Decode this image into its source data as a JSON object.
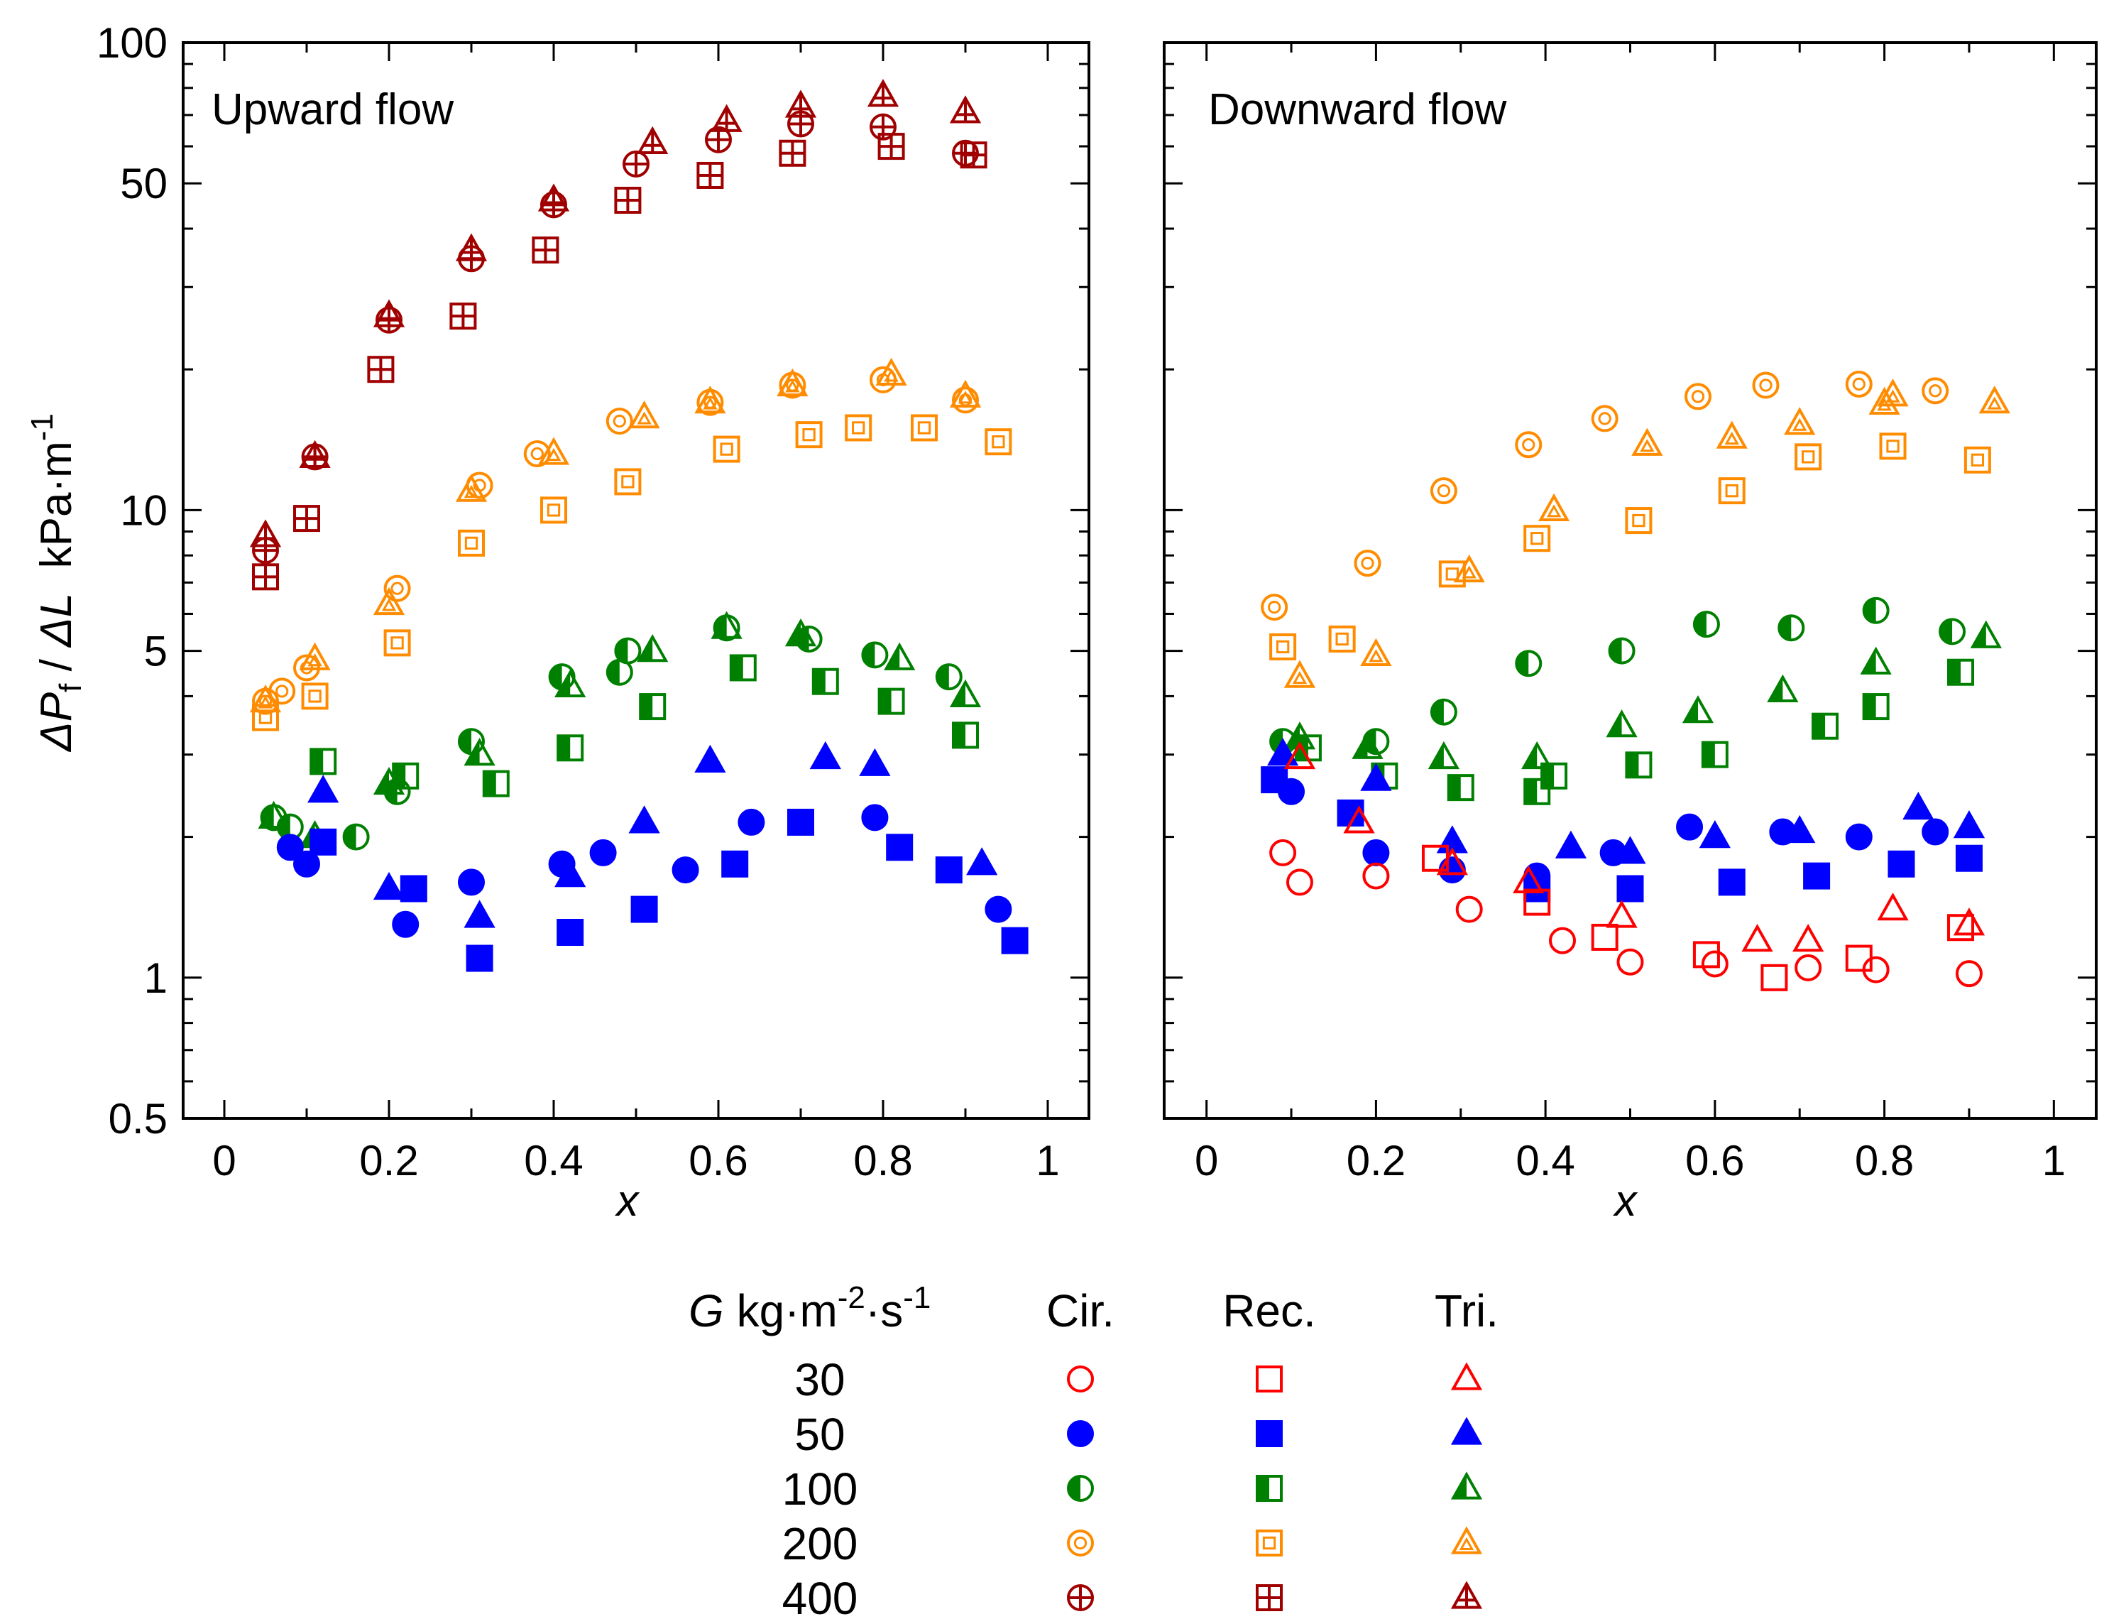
{
  "chart_data": {
    "type": "scatter",
    "ylabel": "ΔPf / ΔL  kPa·m⁻¹",
    "ylabel_parts": [
      "Δ",
      "P",
      "f",
      " / ",
      "Δ",
      "L",
      "  kPa·m",
      "-1"
    ],
    "xlabel": "x",
    "yscale": "log",
    "ylim": [
      0.5,
      100
    ],
    "xlim": [
      -0.05,
      1.05
    ],
    "y_ticks": [
      "0.5",
      "1",
      "5",
      "10",
      "50",
      "100"
    ],
    "x_ticks": [
      "0",
      "0.2",
      "0.4",
      "0.6",
      "0.8",
      "1"
    ],
    "styles": {
      "30": {
        "color": "#ff0000",
        "fill": "open"
      },
      "50": {
        "color": "#0000ff",
        "fill": "solid"
      },
      "100": {
        "color": "#008000",
        "fill": "half"
      },
      "200": {
        "color": "#ff8c00",
        "fill": "inner"
      },
      "400": {
        "color": "#a00000",
        "fill": "cross"
      }
    },
    "panels": [
      {
        "title": "Upward flow",
        "series": [
          {
            "G": "400",
            "shape": "circle",
            "x": [
              0.05,
              0.11,
              0.2,
              0.3,
              0.4,
              0.5,
              0.6,
              0.7,
              0.8,
              0.9
            ],
            "y": [
              8.2,
              13.0,
              25.5,
              34.5,
              45.0,
              55.0,
              62.0,
              67.0,
              66.0,
              58.0
            ]
          },
          {
            "G": "400",
            "shape": "square",
            "x": [
              0.05,
              0.1,
              0.19,
              0.29,
              0.39,
              0.49,
              0.59,
              0.69,
              0.81,
              0.91
            ],
            "y": [
              7.2,
              9.6,
              20.0,
              26.0,
              36.0,
              46.0,
              52.0,
              58.0,
              60.0,
              57.5
            ]
          },
          {
            "G": "400",
            "shape": "triangle",
            "x": [
              0.05,
              0.11,
              0.2,
              0.3,
              0.4,
              0.52,
              0.61,
              0.7,
              0.8,
              0.9
            ],
            "y": [
              8.8,
              13.0,
              26.0,
              36.0,
              46.0,
              61.0,
              68.0,
              73.0,
              77.0,
              71.0
            ]
          },
          {
            "G": "200",
            "shape": "circle",
            "x": [
              0.05,
              0.07,
              0.1,
              0.21,
              0.31,
              0.38,
              0.48,
              0.59,
              0.69,
              0.8,
              0.9
            ],
            "y": [
              3.9,
              4.1,
              4.6,
              6.8,
              11.3,
              13.2,
              15.5,
              17.0,
              18.5,
              19.0,
              17.2
            ]
          },
          {
            "G": "200",
            "shape": "square",
            "x": [
              0.05,
              0.11,
              0.21,
              0.3,
              0.4,
              0.49,
              0.61,
              0.71,
              0.77,
              0.85,
              0.94
            ],
            "y": [
              3.6,
              4.0,
              5.2,
              8.5,
              10.0,
              11.5,
              13.5,
              14.5,
              15.0,
              15.0,
              14.0
            ]
          },
          {
            "G": "200",
            "shape": "triangle",
            "x": [
              0.05,
              0.11,
              0.2,
              0.3,
              0.4,
              0.51,
              0.59,
              0.69,
              0.81,
              0.9
            ],
            "y": [
              3.9,
              4.8,
              6.3,
              11.0,
              13.2,
              15.8,
              17.0,
              18.5,
              19.5,
              17.5
            ]
          },
          {
            "G": "100",
            "shape": "circle",
            "x": [
              0.06,
              0.08,
              0.16,
              0.21,
              0.3,
              0.41,
              0.48,
              0.49,
              0.61,
              0.71,
              0.79,
              0.88
            ],
            "y": [
              2.2,
              2.1,
              2.0,
              2.5,
              3.2,
              4.4,
              4.5,
              5.0,
              5.6,
              5.3,
              4.9,
              4.4
            ]
          },
          {
            "G": "100",
            "shape": "square",
            "x": [
              0.12,
              0.22,
              0.33,
              0.42,
              0.52,
              0.63,
              0.73,
              0.81,
              0.9
            ],
            "y": [
              2.9,
              2.7,
              2.6,
              3.1,
              3.8,
              4.6,
              4.3,
              3.9,
              3.3
            ]
          },
          {
            "G": "100",
            "shape": "triangle",
            "x": [
              0.06,
              0.11,
              0.2,
              0.31,
              0.42,
              0.52,
              0.61,
              0.7,
              0.82,
              0.9
            ],
            "y": [
              2.2,
              2.0,
              2.6,
              3.0,
              4.2,
              5.0,
              5.6,
              5.4,
              4.8,
              4.0
            ]
          },
          {
            "G": "50",
            "shape": "circle",
            "x": [
              0.08,
              0.1,
              0.22,
              0.3,
              0.41,
              0.46,
              0.56,
              0.64,
              0.79,
              0.94
            ],
            "y": [
              1.9,
              1.75,
              1.3,
              1.6,
              1.75,
              1.85,
              1.7,
              2.15,
              2.2,
              1.4
            ]
          },
          {
            "G": "50",
            "shape": "square",
            "x": [
              0.12,
              0.23,
              0.31,
              0.42,
              0.51,
              0.62,
              0.7,
              0.82,
              0.88,
              0.96
            ],
            "y": [
              1.95,
              1.55,
              1.1,
              1.25,
              1.4,
              1.75,
              2.15,
              1.9,
              1.7,
              1.2
            ]
          },
          {
            "G": "50",
            "shape": "triangle",
            "x": [
              0.12,
              0.2,
              0.31,
              0.42,
              0.51,
              0.59,
              0.73,
              0.79,
              0.92
            ],
            "y": [
              2.5,
              1.55,
              1.35,
              1.65,
              2.15,
              2.9,
              2.95,
              2.85,
              1.75
            ]
          }
        ]
      },
      {
        "title": "Downward flow",
        "series": [
          {
            "G": "400",
            "shape": "circle",
            "x": [],
            "y": []
          },
          {
            "G": "400",
            "shape": "square",
            "x": [],
            "y": []
          },
          {
            "G": "400",
            "shape": "triangle",
            "x": [],
            "y": []
          },
          {
            "G": "200",
            "shape": "circle",
            "x": [
              0.08,
              0.19,
              0.28,
              0.38,
              0.47,
              0.58,
              0.66,
              0.77,
              0.86
            ],
            "y": [
              6.2,
              7.7,
              11.0,
              13.8,
              15.7,
              17.5,
              18.5,
              18.6,
              18.0
            ]
          },
          {
            "G": "200",
            "shape": "square",
            "x": [
              0.09,
              0.16,
              0.29,
              0.39,
              0.51,
              0.62,
              0.71,
              0.81,
              0.91
            ],
            "y": [
              5.1,
              5.3,
              7.3,
              8.7,
              9.5,
              11.0,
              13.0,
              13.7,
              12.8
            ]
          },
          {
            "G": "200",
            "shape": "triangle",
            "x": [
              0.11,
              0.2,
              0.31,
              0.41,
              0.52,
              0.62,
              0.7,
              0.8,
              0.81,
              0.93
            ],
            "y": [
              4.4,
              4.9,
              7.4,
              10.0,
              13.8,
              14.3,
              15.3,
              16.9,
              17.6,
              17.0
            ]
          },
          {
            "G": "100",
            "shape": "circle",
            "x": [
              0.09,
              0.2,
              0.28,
              0.38,
              0.49,
              0.59,
              0.69,
              0.79,
              0.88
            ],
            "y": [
              3.2,
              3.2,
              3.7,
              4.7,
              5.0,
              5.7,
              5.6,
              6.1,
              5.5
            ]
          },
          {
            "G": "100",
            "shape": "square",
            "x": [
              0.12,
              0.21,
              0.3,
              0.39,
              0.41,
              0.51,
              0.6,
              0.73,
              0.79,
              0.89
            ],
            "y": [
              3.1,
              2.7,
              2.55,
              2.5,
              2.7,
              2.85,
              3.0,
              3.45,
              3.8,
              4.5
            ]
          },
          {
            "G": "100",
            "shape": "triangle",
            "x": [
              0.11,
              0.19,
              0.28,
              0.39,
              0.49,
              0.58,
              0.68,
              0.79,
              0.92
            ],
            "y": [
              3.25,
              3.1,
              2.95,
              2.95,
              3.45,
              3.7,
              4.1,
              4.7,
              5.35
            ]
          },
          {
            "G": "50",
            "shape": "circle",
            "x": [
              0.1,
              0.2,
              0.29,
              0.39,
              0.48,
              0.57,
              0.68,
              0.77,
              0.86
            ],
            "y": [
              2.5,
              1.85,
              1.7,
              1.65,
              1.85,
              2.1,
              2.05,
              2.0,
              2.05
            ]
          },
          {
            "G": "50",
            "shape": "square",
            "x": [
              0.08,
              0.17,
              0.39,
              0.5,
              0.62,
              0.72,
              0.82,
              0.9
            ],
            "y": [
              2.65,
              2.25,
              1.55,
              1.55,
              1.6,
              1.65,
              1.75,
              1.8
            ]
          },
          {
            "G": "50",
            "shape": "triangle",
            "x": [
              0.09,
              0.2,
              0.29,
              0.43,
              0.5,
              0.6,
              0.7,
              0.84,
              0.9
            ],
            "y": [
              3.0,
              2.65,
              1.95,
              1.9,
              1.85,
              2.0,
              2.05,
              2.3,
              2.1
            ]
          },
          {
            "G": "30",
            "shape": "circle",
            "x": [
              0.09,
              0.11,
              0.2,
              0.31,
              0.42,
              0.5,
              0.6,
              0.71,
              0.79,
              0.9
            ],
            "y": [
              1.85,
              1.6,
              1.65,
              1.4,
              1.2,
              1.08,
              1.07,
              1.05,
              1.04,
              1.02
            ]
          },
          {
            "G": "30",
            "shape": "square",
            "x": [
              0.27,
              0.39,
              0.47,
              0.59,
              0.67,
              0.77,
              0.89
            ],
            "y": [
              1.8,
              1.45,
              1.22,
              1.12,
              1.0,
              1.1,
              1.28
            ]
          },
          {
            "G": "30",
            "shape": "triangle",
            "x": [
              0.11,
              0.18,
              0.29,
              0.38,
              0.49,
              0.65,
              0.71,
              0.81,
              0.9
            ],
            "y": [
              2.95,
              2.15,
              1.75,
              1.6,
              1.35,
              1.2,
              1.2,
              1.4,
              1.3
            ]
          }
        ]
      }
    ],
    "legend": {
      "header_G": "G",
      "header_unit": " kg·m",
      "header_exp1": "-2",
      "header_mid": "·s",
      "header_exp2": "-1",
      "col_headers": [
        "Cir.",
        "Rec.",
        "Tri."
      ],
      "rows": [
        "30",
        "50",
        "100",
        "200",
        "400"
      ]
    }
  }
}
